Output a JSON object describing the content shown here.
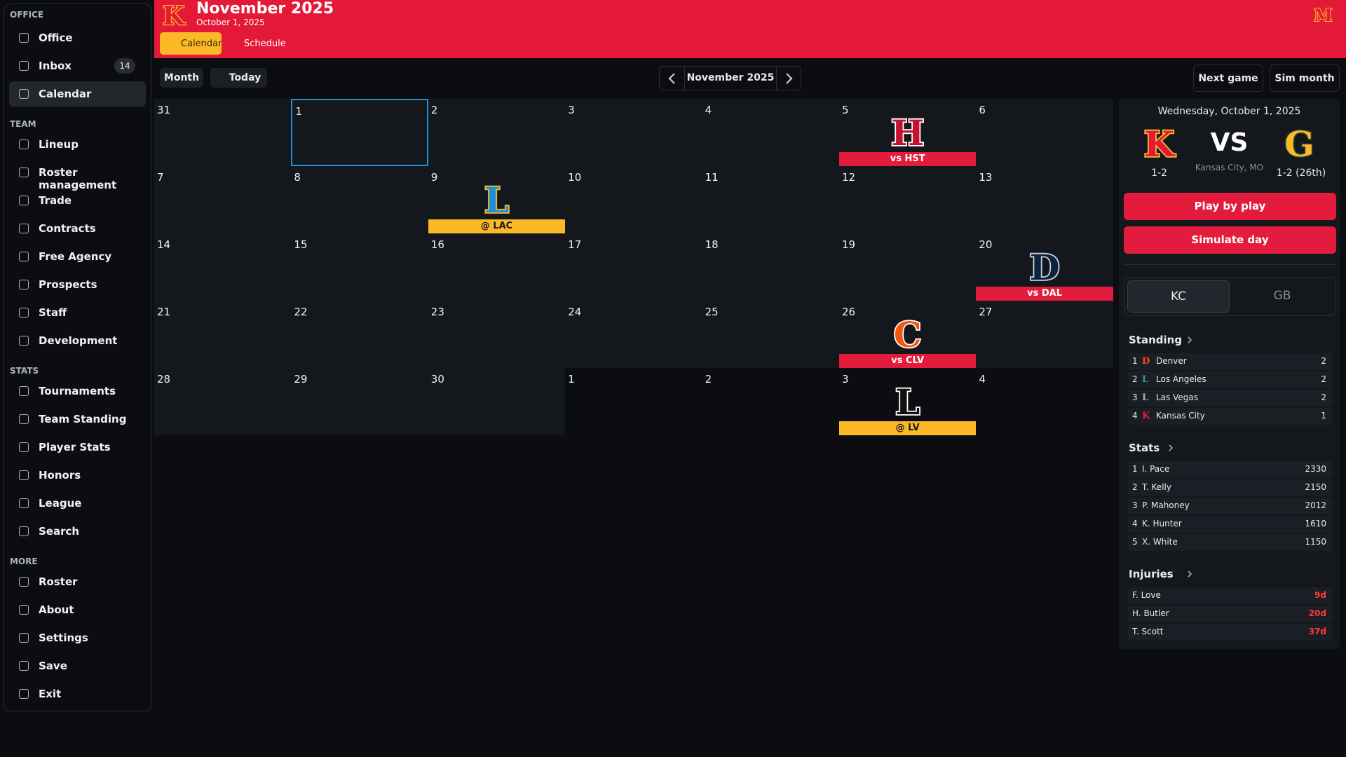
{
  "header": {
    "logo": "K",
    "title": "November 2025",
    "subtitle": "October 1, 2025",
    "tabs": [
      "Calendar",
      "Schedule"
    ],
    "user_logo": "M"
  },
  "sidebar": [
    {
      "title": "OFFICE",
      "items": [
        {
          "label": "Office"
        },
        {
          "label": "Inbox",
          "badge": "14"
        },
        {
          "label": "Calendar",
          "active": true
        }
      ]
    },
    {
      "title": "TEAM",
      "items": [
        {
          "label": "Lineup"
        },
        {
          "label": "Roster management"
        },
        {
          "label": "Trade"
        },
        {
          "label": "Contracts"
        },
        {
          "label": "Free Agency"
        },
        {
          "label": "Prospects"
        },
        {
          "label": "Staff"
        },
        {
          "label": "Development"
        }
      ]
    },
    {
      "title": "STATS",
      "items": [
        {
          "label": "Tournaments"
        },
        {
          "label": "Team Standing"
        },
        {
          "label": "Player Stats"
        },
        {
          "label": "Honors"
        },
        {
          "label": "League"
        },
        {
          "label": "Search"
        }
      ]
    },
    {
      "title": "MORE",
      "items": [
        {
          "label": "Roster"
        },
        {
          "label": "About"
        },
        {
          "label": "Settings"
        },
        {
          "label": "Save"
        },
        {
          "label": "Exit"
        }
      ]
    }
  ],
  "toolbar": {
    "view": "Month",
    "today": "Today",
    "month": "November 2025",
    "next_game": "Next game",
    "sim_month": "Sim month"
  },
  "calendar": {
    "cells": [
      {
        "day": "31"
      },
      {
        "day": "1"
      },
      {
        "day": "2"
      },
      {
        "day": "3"
      },
      {
        "day": "4"
      },
      {
        "day": "5",
        "event": {
          "logo": "H",
          "logo_color": "#c8102e",
          "logo_stroke": "#ffffff",
          "label": "vs HST",
          "color": "#e31c3d",
          "text_color": "#ffffff"
        }
      },
      {
        "day": "6"
      },
      {
        "day": "7"
      },
      {
        "day": "8"
      },
      {
        "day": "9",
        "event": {
          "logo": "L",
          "logo_color": "#1e8fd8",
          "logo_stroke": "#fbb928",
          "label": "@ LAC",
          "color": "#fbb928",
          "text_color": "#1a1a1a"
        }
      },
      {
        "day": "10"
      },
      {
        "day": "11"
      },
      {
        "day": "12"
      },
      {
        "day": "13"
      },
      {
        "day": "14"
      },
      {
        "day": "15"
      },
      {
        "day": "16"
      },
      {
        "day": "17"
      },
      {
        "day": "18"
      },
      {
        "day": "19"
      },
      {
        "day": "20",
        "event": {
          "logo": "D",
          "logo_color": "#0e2240",
          "logo_stroke": "#c9d3e0",
          "label": "vs DAL",
          "color": "#e31c3d",
          "text_color": "#ffffff"
        }
      },
      {
        "day": "21"
      },
      {
        "day": "22"
      },
      {
        "day": "23"
      },
      {
        "day": "24"
      },
      {
        "day": "25"
      },
      {
        "day": "26",
        "event": {
          "logo": "C",
          "logo_color": "#f5560f",
          "logo_stroke": "#ffffff",
          "label": "vs CLV",
          "color": "#e31c3d",
          "text_color": "#ffffff"
        }
      },
      {
        "day": "27"
      },
      {
        "day": "28"
      },
      {
        "day": "29"
      },
      {
        "day": "30"
      },
      {
        "day": "1"
      },
      {
        "day": "2"
      },
      {
        "day": "3",
        "event": {
          "logo": "L",
          "logo_color": "#111111",
          "logo_stroke": "#ffffff",
          "label": "@ LV",
          "color": "#fbb928",
          "text_color": "#1a1a1a"
        }
      },
      {
        "day": "4"
      }
    ]
  },
  "panel": {
    "date": "Wednesday, October 1, 2025",
    "home": {
      "logo": "K",
      "logo_color": "#e31937",
      "logo_stroke": "#fbb928",
      "record": "1-2"
    },
    "vs": "VS",
    "location": "Kansas City, MO",
    "away": {
      "logo": "G",
      "logo_color": "#fbb928",
      "logo_stroke": "#203731",
      "record": "1-2 (26th)"
    },
    "actions": [
      "Play by play",
      "Simulate day"
    ],
    "toggle": [
      "KC",
      "GB"
    ],
    "standing": {
      "title": "Standing",
      "rows": [
        {
          "rank": "1",
          "logo": "D",
          "logo_color": "#fb4f14",
          "team": "Denver",
          "value": "2"
        },
        {
          "rank": "2",
          "logo": "L",
          "logo_color": "#2aa0a8",
          "team": "Los Angeles",
          "value": "2"
        },
        {
          "rank": "3",
          "logo": "L",
          "logo_color": "#a5acaf",
          "team": "Las Vegas",
          "value": "2"
        },
        {
          "rank": "4",
          "logo": "K",
          "logo_color": "#e31937",
          "team": "Kansas City",
          "value": "1"
        }
      ]
    },
    "stats": {
      "title": "Stats",
      "rows": [
        {
          "rank": "1",
          "player": "I. Pace",
          "value": "2330"
        },
        {
          "rank": "2",
          "player": "T. Kelly",
          "value": "2150"
        },
        {
          "rank": "3",
          "player": "P. Mahoney",
          "value": "2012"
        },
        {
          "rank": "4",
          "player": "K. Hunter",
          "value": "1610"
        },
        {
          "rank": "5",
          "player": "X. White",
          "value": "1150"
        }
      ]
    },
    "injuries": {
      "title": "Injuries",
      "rows": [
        {
          "player": "F. Love",
          "value": "9d"
        },
        {
          "player": "H. Butler",
          "value": "20d"
        },
        {
          "player": "T. Scott",
          "value": "37d"
        }
      ]
    }
  }
}
